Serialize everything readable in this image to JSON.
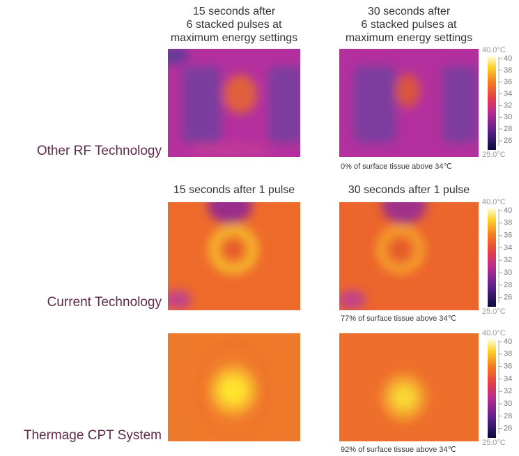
{
  "rows": [
    {
      "label": "Other RF Technology",
      "headers": [
        [
          "15 seconds after",
          "6 stacked pulses at",
          "maximum energy settings"
        ],
        [
          "30 seconds after",
          "6 stacked pulses at",
          "maximum energy settings"
        ]
      ],
      "caption": "0% of surface tissue above 34℃"
    },
    {
      "label": "Current Technology",
      "headers": [
        [
          "15 seconds after 1 pulse"
        ],
        [
          "30 seconds after 1 pulse"
        ]
      ],
      "caption": "77% of surface tissue above 34℃"
    },
    {
      "label": "Thermage CPT System",
      "caption": "92% of surface tissue above 34℃"
    }
  ],
  "colorbar": {
    "max_label": "40.0°C",
    "min_label": "25.0°C",
    "ticks": [
      40,
      38,
      36,
      34,
      32,
      30,
      28,
      26
    ]
  }
}
